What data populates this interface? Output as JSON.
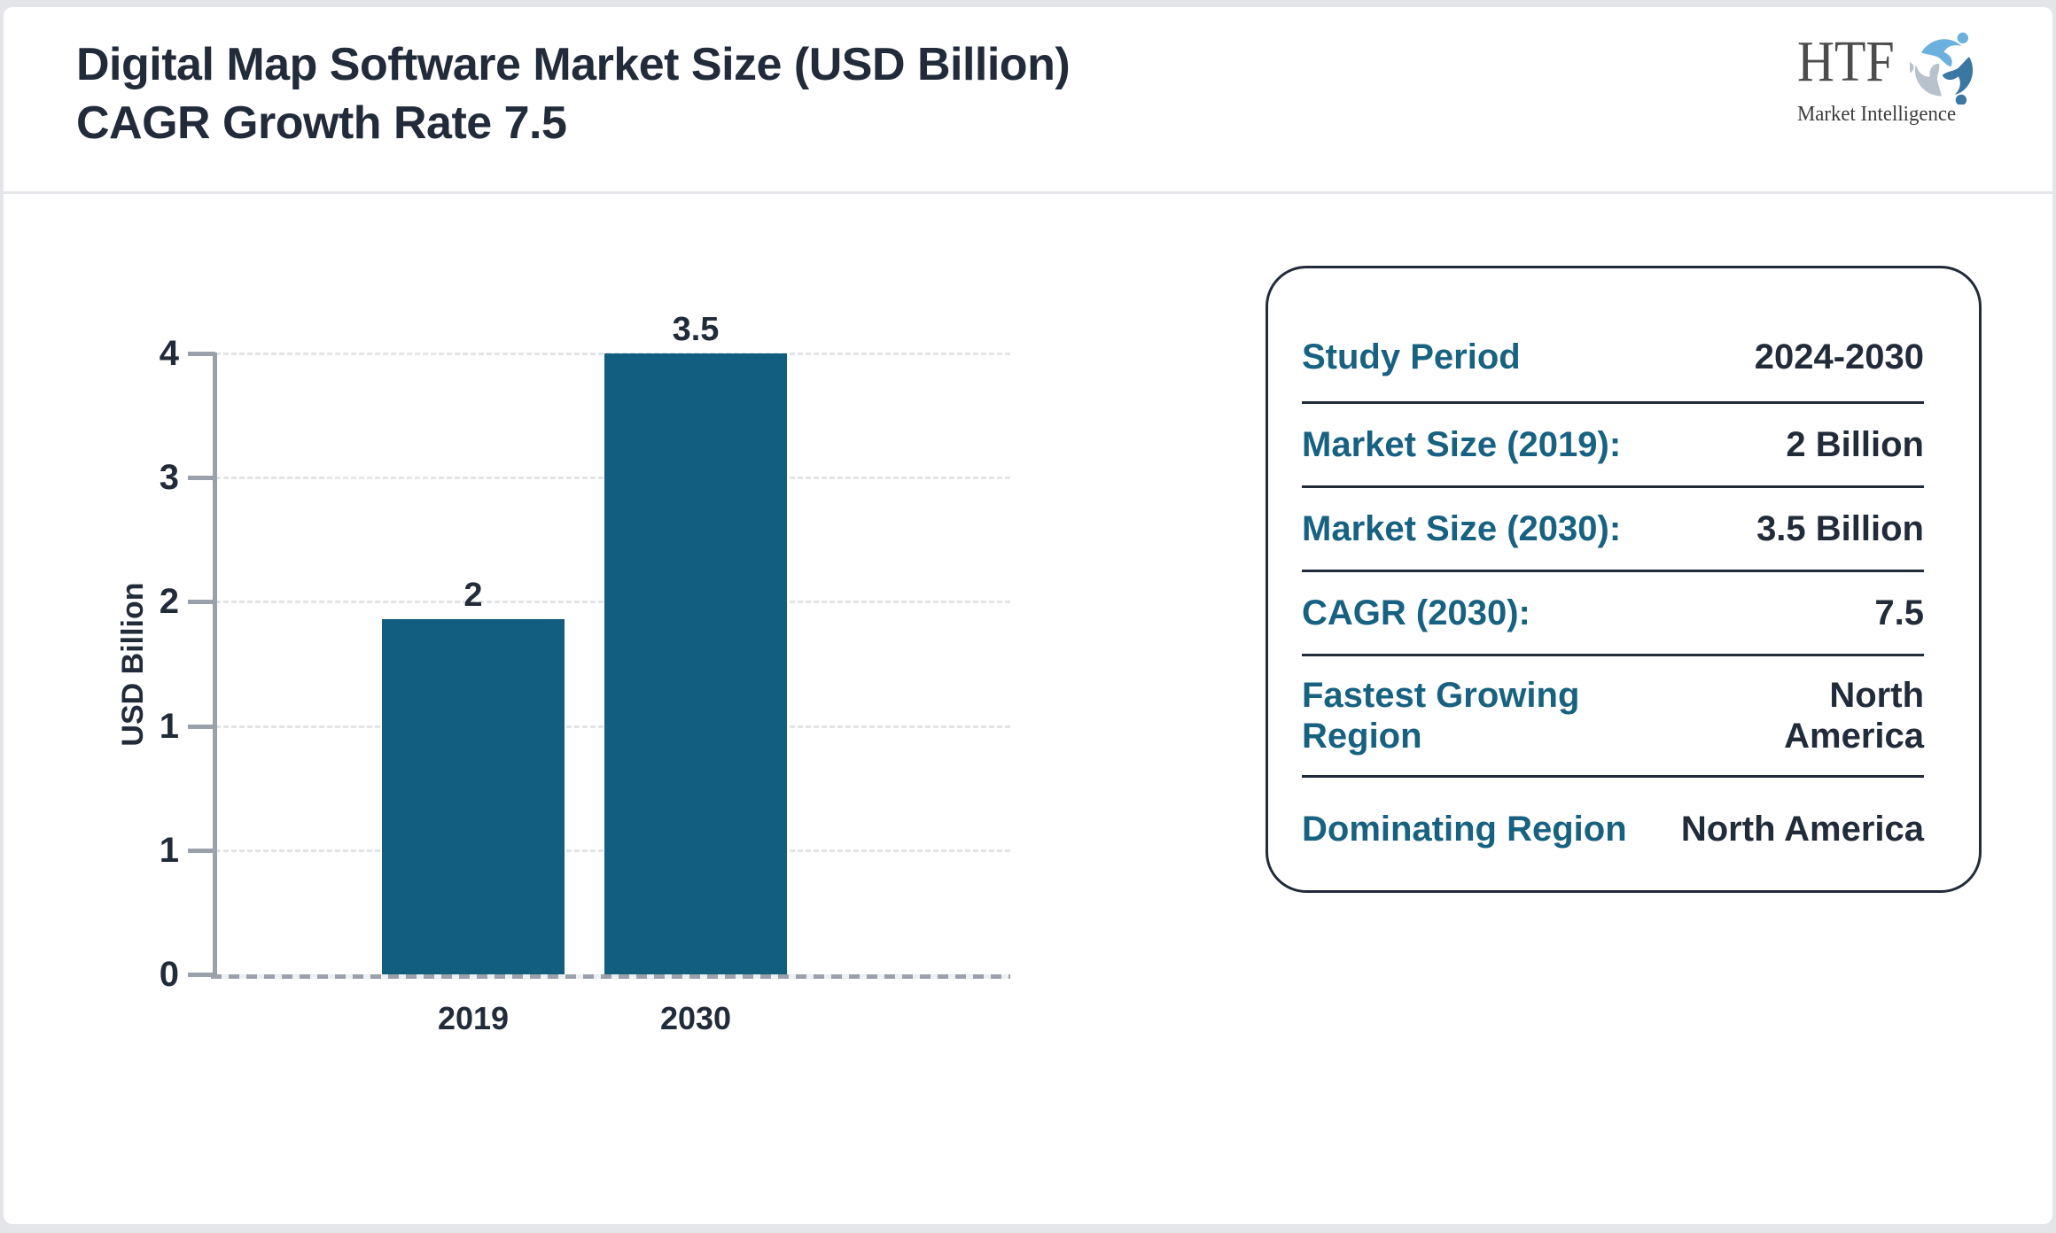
{
  "header": {
    "title_line1": "Digital Map Software Market Size (USD Billion)",
    "title_line2": "CAGR Growth Rate 7.5"
  },
  "logo": {
    "name": "HTF",
    "tagline": "Market Intelligence",
    "icon": "triskelion-people-icon",
    "colors": {
      "light_blue": "#6cb0dd",
      "steel_blue": "#3c77a4",
      "gray": "#b7c2cc"
    }
  },
  "chart_data": {
    "type": "bar",
    "title": "Digital Map Software Market Size (USD Billion)",
    "categories": [
      "2019",
      "2030"
    ],
    "values": [
      2,
      3.5
    ],
    "bar_labels": [
      "2",
      "3.5"
    ],
    "xlabel": "",
    "ylabel": "USD Billion",
    "ylim": [
      0,
      3.5
    ],
    "y_tick_labels_top_to_bottom": [
      "4",
      "3",
      "2",
      "1",
      "1",
      "0"
    ],
    "grid": true,
    "legend": "none",
    "bar_color": "#115e80",
    "axis_color": "#9aa1ab",
    "tick_text_color": "#212b3a"
  },
  "info_panel": {
    "rows": [
      {
        "label": "Study Period",
        "value": "2024-2030"
      },
      {
        "label": "Market Size (2019):",
        "value": "2 Billion"
      },
      {
        "label": "Market Size (2030):",
        "value": "3.5 Billion"
      },
      {
        "label": "CAGR (2030):",
        "value": "7.5"
      },
      {
        "label": "Fastest Growing Region",
        "value": "North America"
      },
      {
        "label": "Dominating Region",
        "value": "North America"
      }
    ],
    "label_color": "#176181",
    "value_color": "#212b3a"
  }
}
